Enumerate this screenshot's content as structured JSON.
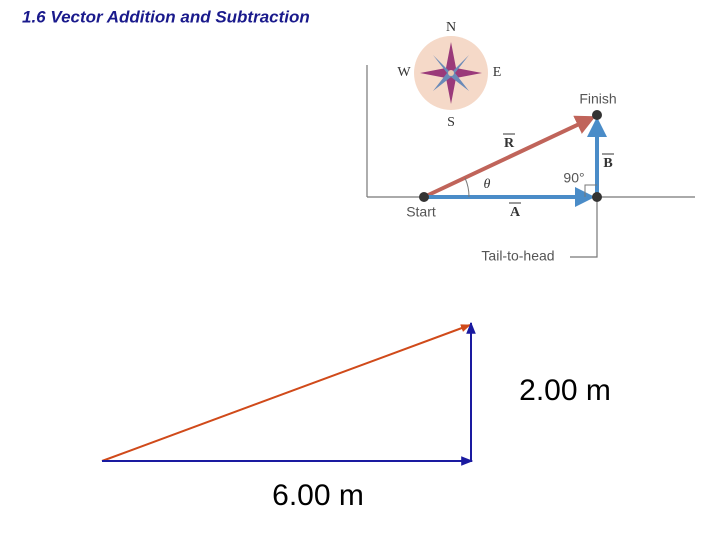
{
  "header": {
    "title": "1.6 Vector Addition and Subtraction"
  },
  "figure": {
    "compass": {
      "north": "N",
      "west": "W",
      "east": "E",
      "south": "S"
    },
    "finish": "Finish",
    "start": "Start",
    "vector_r": "R",
    "vector_a": "A",
    "vector_b": "B",
    "angle": "θ",
    "right_angle": "90°",
    "caption": "Tail-to-head"
  },
  "triangle": {
    "vertical_label": "2.00 m",
    "horizontal_label": "6.00 m"
  }
}
